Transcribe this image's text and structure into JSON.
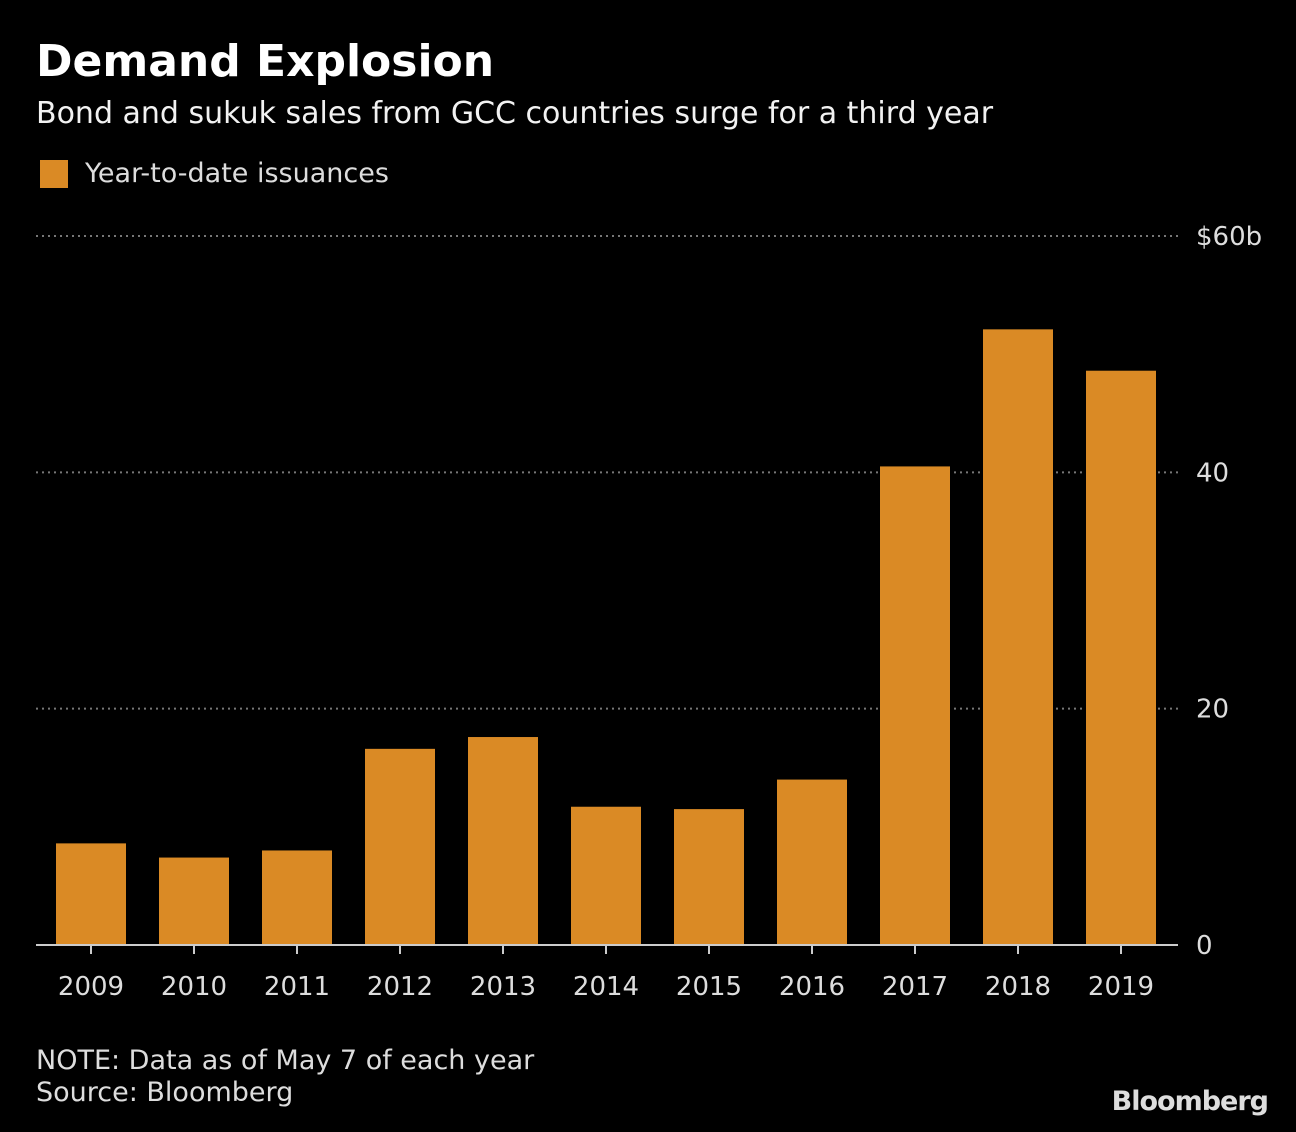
{
  "chart_data": {
    "type": "bar",
    "title": "Demand Explosion",
    "subtitle": "Bond and sukuk sales from GCC countries surge for a third year",
    "legend": [
      "Year-to-date issuances"
    ],
    "legend_placement": "top-left",
    "categories": [
      "2009",
      "2010",
      "2011",
      "2012",
      "2013",
      "2014",
      "2015",
      "2016",
      "2017",
      "2018",
      "2019"
    ],
    "series": [
      {
        "name": "Year-to-date issuances",
        "values": [
          8.6,
          7.4,
          8.0,
          16.6,
          17.6,
          11.7,
          11.5,
          14.0,
          40.5,
          52.1,
          48.6
        ]
      }
    ],
    "ylim": [
      0,
      60
    ],
    "yticks": [
      0,
      20,
      40,
      60
    ],
    "ytick_labels": [
      "0",
      "20",
      "40",
      "$60b"
    ],
    "grid": true,
    "color": "#DA8A25",
    "xlabel": "",
    "ylabel": ""
  },
  "note": "NOTE: Data as of May 7 of each year",
  "source": "Source: Bloomberg",
  "logo": "Bloomberg"
}
